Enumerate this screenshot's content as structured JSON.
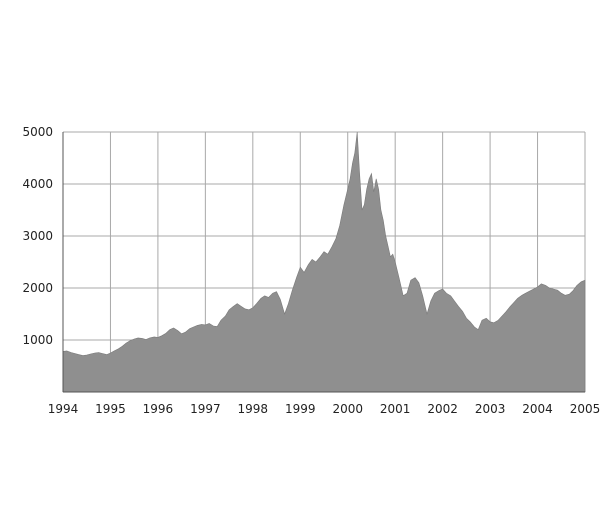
{
  "chart_data": {
    "type": "area",
    "title": "",
    "xlabel": "",
    "ylabel": "",
    "xlim": [
      1994,
      2005
    ],
    "ylim": [
      0,
      5000
    ],
    "grid": true,
    "legend": "none",
    "x_ticks": [
      "1994",
      "1995",
      "1996",
      "1997",
      "1998",
      "1999",
      "2000",
      "2001",
      "2002",
      "2003",
      "2004",
      "2005"
    ],
    "y_ticks": [
      "1000",
      "2000",
      "3000",
      "4000",
      "5000"
    ],
    "colors": {
      "fill": "#8f8f8f",
      "grid": "#a8a8a8",
      "axis": "#555555"
    },
    "series": [
      {
        "x": [
          1994.0,
          1994.08,
          1994.17,
          1994.25,
          1994.33,
          1994.42,
          1994.5,
          1994.58,
          1994.67,
          1994.75,
          1994.83,
          1994.92,
          1995.0,
          1995.08,
          1995.17,
          1995.25,
          1995.33,
          1995.42,
          1995.5,
          1995.58,
          1995.67,
          1995.75,
          1995.83,
          1995.92,
          1996.0,
          1996.08,
          1996.17,
          1996.25,
          1996.33,
          1996.42,
          1996.5,
          1996.58,
          1996.67,
          1996.75,
          1996.83,
          1996.92,
          1997.0,
          1997.08,
          1997.17,
          1997.25,
          1997.33,
          1997.42,
          1997.5,
          1997.58,
          1997.67,
          1997.75,
          1997.83,
          1997.92,
          1998.0,
          1998.08,
          1998.17,
          1998.25,
          1998.33,
          1998.42,
          1998.5,
          1998.58,
          1998.67,
          1998.75,
          1998.83,
          1998.92,
          1999.0,
          1999.08,
          1999.17,
          1999.25,
          1999.33,
          1999.42,
          1999.5,
          1999.58,
          1999.67,
          1999.75,
          1999.83,
          1999.92,
          2000.0,
          2000.05,
          2000.1,
          2000.15,
          2000.2,
          2000.25,
          2000.3,
          2000.35,
          2000.4,
          2000.45,
          2000.5,
          2000.55,
          2000.6,
          2000.65,
          2000.7,
          2000.75,
          2000.8,
          2000.85,
          2000.9,
          2000.95,
          2001.0,
          2001.08,
          2001.17,
          2001.25,
          2001.33,
          2001.42,
          2001.5,
          2001.58,
          2001.67,
          2001.75,
          2001.83,
          2001.92,
          2002.0,
          2002.08,
          2002.17,
          2002.25,
          2002.33,
          2002.42,
          2002.5,
          2002.58,
          2002.67,
          2002.75,
          2002.83,
          2002.92,
          2003.0,
          2003.08,
          2003.17,
          2003.25,
          2003.33,
          2003.42,
          2003.5,
          2003.58,
          2003.67,
          2003.75,
          2003.83,
          2003.92,
          2004.0,
          2004.08,
          2004.17,
          2004.25,
          2004.33,
          2004.42,
          2004.5,
          2004.58,
          2004.67,
          2004.75,
          2004.83,
          2004.92,
          2005.0
        ],
        "y": [
          780,
          790,
          760,
          740,
          720,
          700,
          710,
          730,
          750,
          760,
          740,
          720,
          750,
          790,
          830,
          880,
          940,
          990,
          1020,
          1040,
          1030,
          1010,
          1040,
          1060,
          1050,
          1080,
          1130,
          1200,
          1230,
          1180,
          1120,
          1150,
          1220,
          1250,
          1280,
          1300,
          1290,
          1320,
          1270,
          1260,
          1380,
          1460,
          1580,
          1640,
          1700,
          1650,
          1600,
          1580,
          1620,
          1700,
          1800,
          1850,
          1820,
          1900,
          1930,
          1780,
          1500,
          1700,
          1950,
          2200,
          2400,
          2300,
          2450,
          2550,
          2500,
          2600,
          2700,
          2650,
          2800,
          2950,
          3200,
          3600,
          3900,
          4100,
          4400,
          4600,
          5000,
          4200,
          3500,
          3600,
          3900,
          4100,
          4200,
          3850,
          4100,
          3900,
          3500,
          3300,
          3000,
          2800,
          2600,
          2650,
          2500,
          2200,
          1850,
          1900,
          2150,
          2200,
          2100,
          1850,
          1500,
          1750,
          1900,
          1950,
          1980,
          1900,
          1850,
          1750,
          1650,
          1550,
          1420,
          1350,
          1250,
          1200,
          1380,
          1420,
          1350,
          1330,
          1380,
          1460,
          1540,
          1640,
          1720,
          1800,
          1860,
          1900,
          1940,
          1980,
          2020,
          2080,
          2050,
          2000,
          1980,
          1960,
          1900,
          1860,
          1880,
          1950,
          2050,
          2120,
          2150
        ]
      }
    ]
  }
}
